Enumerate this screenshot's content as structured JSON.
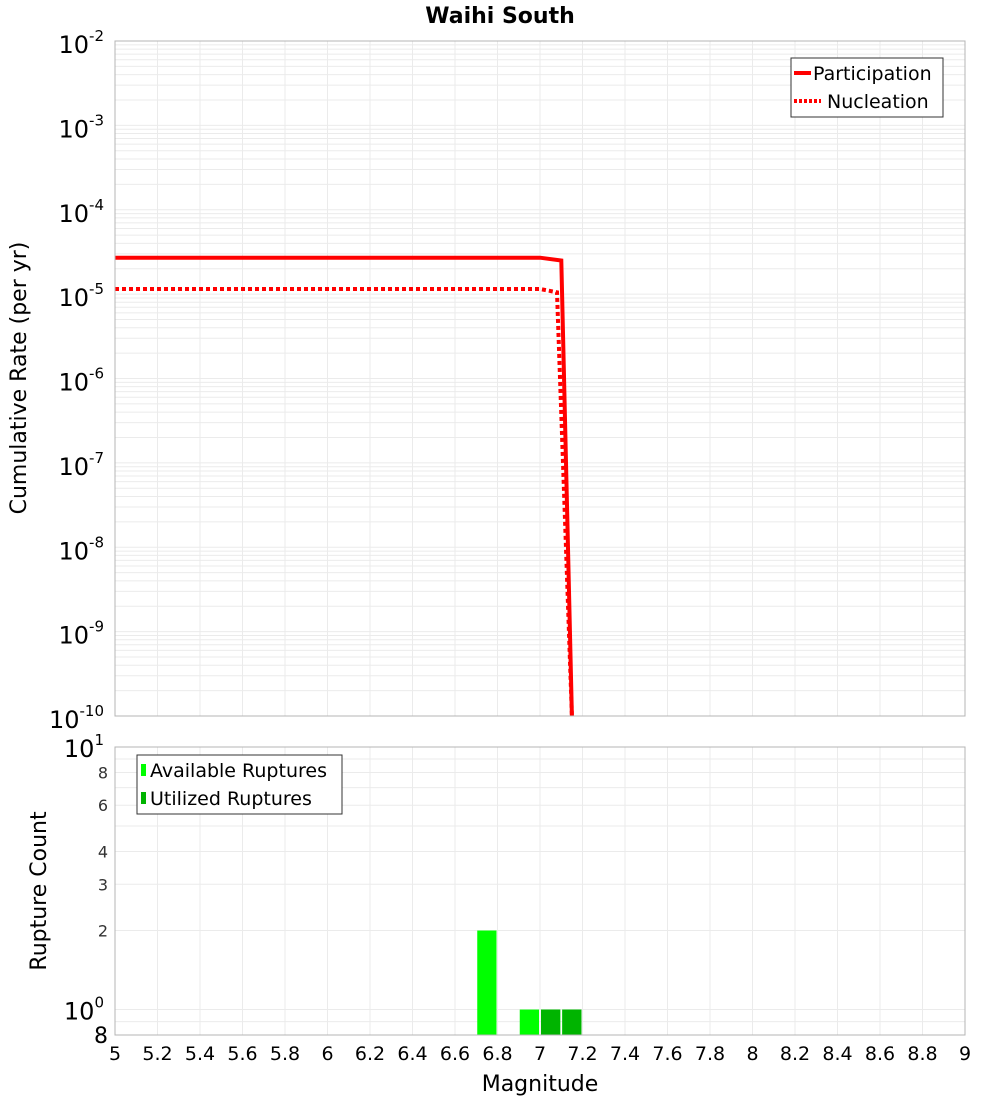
{
  "title": "Waihi South",
  "colors": {
    "participation": "#ff0000",
    "nucleation": "#ff0000",
    "available": "#00ff00",
    "utilized": "#00b400",
    "grid": "#ebebeb",
    "frame": "#b4b4b4"
  },
  "chart_data": [
    {
      "type": "line",
      "title": "Waihi South",
      "xlabel": "Magnitude",
      "ylabel": "Cumulative Rate (per yr)",
      "xlim": [
        5,
        9
      ],
      "ylim": [
        1e-10,
        0.01
      ],
      "yscale": "log",
      "yticks": [
        "10^-2",
        "10^-3",
        "10^-4",
        "10^-5",
        "10^-6",
        "10^-7",
        "10^-8",
        "10^-9",
        "10^-10"
      ],
      "legend_position": "top-right",
      "grid": true,
      "series": [
        {
          "name": "Participation",
          "style": "solid",
          "x": [
            5.0,
            7.0,
            7.1,
            7.15
          ],
          "y": [
            2.7e-05,
            2.7e-05,
            2.5e-05,
            1e-10
          ]
        },
        {
          "name": "Nucleation",
          "style": "dotted",
          "x": [
            5.0,
            7.0,
            7.08,
            7.15
          ],
          "y": [
            1.15e-05,
            1.15e-05,
            1.05e-05,
            1e-10
          ]
        }
      ]
    },
    {
      "type": "bar",
      "xlabel": "Magnitude",
      "ylabel": "Rupture Count",
      "xlim": [
        5,
        9
      ],
      "ylim": [
        0.8,
        10
      ],
      "yscale": "log",
      "yticks": [
        "8",
        "10^0",
        "2",
        "3",
        "4",
        "6",
        "8",
        "10^1"
      ],
      "xticks": [
        "5",
        "5.2",
        "5.4",
        "5.6",
        "5.8",
        "6",
        "6.2",
        "6.4",
        "6.6",
        "6.8",
        "7",
        "7.2",
        "7.4",
        "7.6",
        "7.8",
        "8",
        "8.2",
        "8.4",
        "8.6",
        "8.8",
        "9"
      ],
      "legend_position": "top-left",
      "grid": true,
      "bar_width": 0.1,
      "series": [
        {
          "name": "Available Ruptures",
          "x": [
            6.75,
            6.95,
            7.05,
            7.15
          ],
          "values": [
            2,
            1,
            1,
            1
          ]
        },
        {
          "name": "Utilized Ruptures",
          "x": [
            7.05,
            7.15
          ],
          "values": [
            1,
            1
          ]
        }
      ]
    }
  ]
}
